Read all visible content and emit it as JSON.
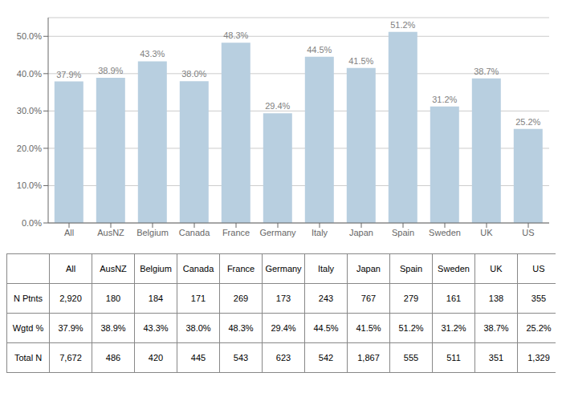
{
  "chart_data": {
    "type": "bar",
    "categories": [
      "All",
      "AusNZ",
      "Belgium",
      "Canada",
      "France",
      "Germany",
      "Italy",
      "Japan",
      "Spain",
      "Sweden",
      "UK",
      "US"
    ],
    "values": [
      37.9,
      38.9,
      43.3,
      38.0,
      48.3,
      29.4,
      44.5,
      41.5,
      51.2,
      31.2,
      38.7,
      25.2
    ],
    "value_labels": [
      "37.9%",
      "38.9%",
      "43.3%",
      "38.0%",
      "48.3%",
      "29.4%",
      "44.5%",
      "41.5%",
      "51.2%",
      "31.2%",
      "38.7%",
      "25.2%"
    ],
    "data_labels": true,
    "color": "#b8cfe0",
    "ylim": [
      0,
      55
    ],
    "yticks": [
      {
        "value": 0,
        "label": "0.0%"
      },
      {
        "value": 10,
        "label": "10.0%"
      },
      {
        "value": 20,
        "label": "20.0%"
      },
      {
        "value": 30,
        "label": "30.0%"
      },
      {
        "value": 40,
        "label": "40.0%"
      },
      {
        "value": 50,
        "label": "50.0%"
      }
    ],
    "grid": true,
    "table": [
      {
        "label": "N Ptnts",
        "cells": [
          "2,920",
          "180",
          "184",
          "171",
          "269",
          "173",
          "243",
          "767",
          "279",
          "161",
          "138",
          "355"
        ]
      },
      {
        "label": "Wgtd %",
        "cells": [
          "37.9%",
          "38.9%",
          "43.3%",
          "38.0%",
          "48.3%",
          "29.4%",
          "44.5%",
          "41.5%",
          "51.2%",
          "31.2%",
          "38.7%",
          "25.2%"
        ]
      },
      {
        "label": "Total N",
        "cells": [
          "7,672",
          "486",
          "420",
          "445",
          "543",
          "623",
          "542",
          "1,867",
          "555",
          "511",
          "351",
          "1,329"
        ]
      }
    ]
  }
}
